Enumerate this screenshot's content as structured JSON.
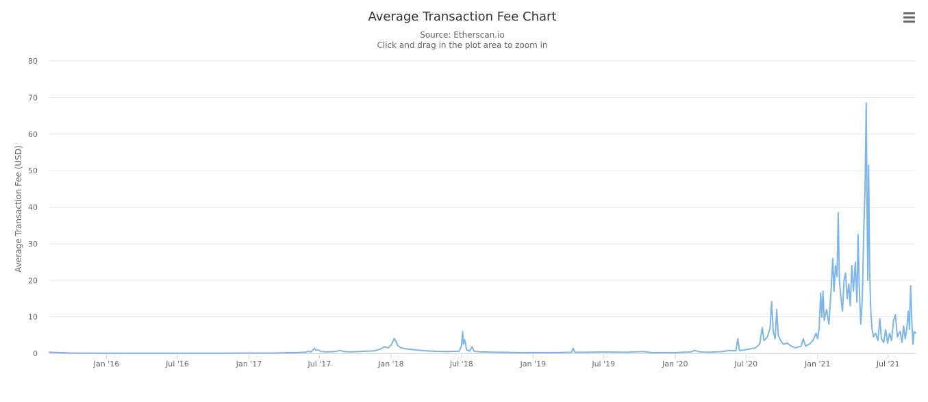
{
  "chart_data": {
    "type": "line",
    "title": "Average Transaction Fee Chart",
    "subtitle_source": "Source: Etherscan.io",
    "subtitle_hint": "Click and drag in the plot area to zoom in",
    "ylabel": "Average Transaction Fee (USD)",
    "xlabel": "",
    "ylim": [
      0,
      80
    ],
    "xlim": [
      "2015-08-07",
      "2021-09-10"
    ],
    "grid": true,
    "legend": "none",
    "y_ticks": [
      "0",
      "10",
      "20",
      "30",
      "40",
      "50",
      "60",
      "70",
      "80"
    ],
    "x_ticks": [
      {
        "date": "2016-01-01",
        "label": "Jan '16"
      },
      {
        "date": "2016-07-01",
        "label": "Jul '16"
      },
      {
        "date": "2017-01-01",
        "label": "Jan '17"
      },
      {
        "date": "2017-07-01",
        "label": "Jul '17"
      },
      {
        "date": "2018-01-01",
        "label": "Jan '18"
      },
      {
        "date": "2018-07-01",
        "label": "Jul '18"
      },
      {
        "date": "2019-01-01",
        "label": "Jan '19"
      },
      {
        "date": "2019-07-01",
        "label": "Jul '19"
      },
      {
        "date": "2020-01-01",
        "label": "Jan '20"
      },
      {
        "date": "2020-07-01",
        "label": "Jul '20"
      },
      {
        "date": "2021-01-01",
        "label": "Jan '21"
      },
      {
        "date": "2021-07-01",
        "label": "Jul '21"
      }
    ],
    "series": [
      {
        "color": "#7cb5ec",
        "points": [
          [
            "2015-08-07",
            0.3
          ],
          [
            "2015-10-01",
            0.1
          ],
          [
            "2016-01-01",
            0.05
          ],
          [
            "2016-04-01",
            0.05
          ],
          [
            "2016-07-01",
            0.05
          ],
          [
            "2016-10-01",
            0.06
          ],
          [
            "2017-01-01",
            0.1
          ],
          [
            "2017-03-01",
            0.1
          ],
          [
            "2017-05-01",
            0.2
          ],
          [
            "2017-05-25",
            0.3
          ],
          [
            "2017-06-03",
            0.6
          ],
          [
            "2017-06-10",
            0.4
          ],
          [
            "2017-06-18",
            1.4
          ],
          [
            "2017-06-22",
            0.8
          ],
          [
            "2017-06-27",
            1.0
          ],
          [
            "2017-07-05",
            0.5
          ],
          [
            "2017-07-20",
            0.4
          ],
          [
            "2017-08-10",
            0.5
          ],
          [
            "2017-08-24",
            0.8
          ],
          [
            "2017-09-01",
            0.5
          ],
          [
            "2017-09-20",
            0.4
          ],
          [
            "2017-10-10",
            0.5
          ],
          [
            "2017-11-01",
            0.6
          ],
          [
            "2017-11-20",
            0.7
          ],
          [
            "2017-12-05",
            1.2
          ],
          [
            "2017-12-15",
            1.8
          ],
          [
            "2017-12-25",
            1.5
          ],
          [
            "2018-01-01",
            2.3
          ],
          [
            "2018-01-05",
            3.0
          ],
          [
            "2018-01-09",
            4.1
          ],
          [
            "2018-01-13",
            3.4
          ],
          [
            "2018-01-18",
            2.2
          ],
          [
            "2018-01-25",
            1.6
          ],
          [
            "2018-02-05",
            1.3
          ],
          [
            "2018-02-20",
            1.1
          ],
          [
            "2018-03-10",
            0.9
          ],
          [
            "2018-04-01",
            0.7
          ],
          [
            "2018-04-20",
            0.6
          ],
          [
            "2018-05-10",
            0.5
          ],
          [
            "2018-06-01",
            0.5
          ],
          [
            "2018-06-25",
            0.6
          ],
          [
            "2018-07-01",
            2.0
          ],
          [
            "2018-07-04",
            6.0
          ],
          [
            "2018-07-06",
            2.5
          ],
          [
            "2018-07-09",
            3.8
          ],
          [
            "2018-07-14",
            1.0
          ],
          [
            "2018-07-22",
            0.6
          ],
          [
            "2018-07-28",
            1.8
          ],
          [
            "2018-08-02",
            0.6
          ],
          [
            "2018-08-20",
            0.4
          ],
          [
            "2018-10-01",
            0.3
          ],
          [
            "2018-12-01",
            0.2
          ],
          [
            "2019-01-01",
            0.2
          ],
          [
            "2019-03-01",
            0.2
          ],
          [
            "2019-04-10",
            0.3
          ],
          [
            "2019-04-14",
            1.4
          ],
          [
            "2019-04-18",
            0.3
          ],
          [
            "2019-05-20",
            0.3
          ],
          [
            "2019-07-01",
            0.4
          ],
          [
            "2019-09-01",
            0.3
          ],
          [
            "2019-10-10",
            0.5
          ],
          [
            "2019-11-01",
            0.2
          ],
          [
            "2020-01-01",
            0.2
          ],
          [
            "2020-02-10",
            0.4
          ],
          [
            "2020-02-20",
            0.8
          ],
          [
            "2020-03-05",
            0.4
          ],
          [
            "2020-04-01",
            0.3
          ],
          [
            "2020-05-01",
            0.5
          ],
          [
            "2020-05-20",
            0.8
          ],
          [
            "2020-06-05",
            0.7
          ],
          [
            "2020-06-10",
            4.0
          ],
          [
            "2020-06-14",
            0.8
          ],
          [
            "2020-06-25",
            0.9
          ],
          [
            "2020-07-10",
            1.2
          ],
          [
            "2020-07-25",
            1.5
          ],
          [
            "2020-08-05",
            2.5
          ],
          [
            "2020-08-12",
            7.1
          ],
          [
            "2020-08-16",
            3.5
          ],
          [
            "2020-08-25",
            4.5
          ],
          [
            "2020-09-01",
            7.0
          ],
          [
            "2020-09-05",
            14.2
          ],
          [
            "2020-09-09",
            6.0
          ],
          [
            "2020-09-14",
            4.0
          ],
          [
            "2020-09-18",
            12.0
          ],
          [
            "2020-09-22",
            5.0
          ],
          [
            "2020-09-28",
            3.5
          ],
          [
            "2020-10-05",
            2.5
          ],
          [
            "2020-10-15",
            2.8
          ],
          [
            "2020-10-25",
            2.0
          ],
          [
            "2020-11-05",
            1.5
          ],
          [
            "2020-11-20",
            2.0
          ],
          [
            "2020-11-25",
            4.0
          ],
          [
            "2020-12-01",
            2.0
          ],
          [
            "2020-12-10",
            2.5
          ],
          [
            "2020-12-20",
            3.5
          ],
          [
            "2020-12-28",
            5.5
          ],
          [
            "2021-01-01",
            4.0
          ],
          [
            "2021-01-05",
            7.0
          ],
          [
            "2021-01-09",
            16.5
          ],
          [
            "2021-01-12",
            10.0
          ],
          [
            "2021-01-15",
            17.0
          ],
          [
            "2021-01-18",
            9.0
          ],
          [
            "2021-01-24",
            12.0
          ],
          [
            "2021-01-30",
            8.0
          ],
          [
            "2021-02-05",
            18.0
          ],
          [
            "2021-02-09",
            26.0
          ],
          [
            "2021-02-12",
            17.0
          ],
          [
            "2021-02-16",
            24.0
          ],
          [
            "2021-02-20",
            21.0
          ],
          [
            "2021-02-23",
            38.5
          ],
          [
            "2021-02-26",
            20.0
          ],
          [
            "2021-03-02",
            15.0
          ],
          [
            "2021-03-06",
            11.5
          ],
          [
            "2021-03-10",
            20.0
          ],
          [
            "2021-03-14",
            22.0
          ],
          [
            "2021-03-18",
            15.0
          ],
          [
            "2021-03-22",
            19.0
          ],
          [
            "2021-03-26",
            13.0
          ],
          [
            "2021-03-30",
            24.0
          ],
          [
            "2021-04-03",
            17.0
          ],
          [
            "2021-04-08",
            25.0
          ],
          [
            "2021-04-12",
            14.0
          ],
          [
            "2021-04-15",
            32.5
          ],
          [
            "2021-04-18",
            18.0
          ],
          [
            "2021-04-22",
            8.0
          ],
          [
            "2021-04-26",
            15.0
          ],
          [
            "2021-04-30",
            35.0
          ],
          [
            "2021-05-03",
            45.0
          ],
          [
            "2021-05-06",
            68.5
          ],
          [
            "2021-05-08",
            40.0
          ],
          [
            "2021-05-10",
            20.0
          ],
          [
            "2021-05-12",
            51.5
          ],
          [
            "2021-05-15",
            22.0
          ],
          [
            "2021-05-18",
            11.0
          ],
          [
            "2021-05-21",
            6.5
          ],
          [
            "2021-05-25",
            4.5
          ],
          [
            "2021-05-30",
            5.5
          ],
          [
            "2021-06-05",
            3.5
          ],
          [
            "2021-06-10",
            9.5
          ],
          [
            "2021-06-14",
            4.0
          ],
          [
            "2021-06-20",
            3.0
          ],
          [
            "2021-06-25",
            6.5
          ],
          [
            "2021-06-30",
            2.8
          ],
          [
            "2021-07-05",
            5.5
          ],
          [
            "2021-07-10",
            3.5
          ],
          [
            "2021-07-15",
            9.0
          ],
          [
            "2021-07-20",
            10.5
          ],
          [
            "2021-07-25",
            4.5
          ],
          [
            "2021-08-01",
            6.0
          ],
          [
            "2021-08-06",
            3.0
          ],
          [
            "2021-08-10",
            7.5
          ],
          [
            "2021-08-14",
            4.0
          ],
          [
            "2021-08-18",
            6.5
          ],
          [
            "2021-08-22",
            11.5
          ],
          [
            "2021-08-25",
            6.5
          ],
          [
            "2021-08-28",
            18.5
          ],
          [
            "2021-08-31",
            9.0
          ],
          [
            "2021-09-03",
            2.5
          ],
          [
            "2021-09-06",
            6.0
          ],
          [
            "2021-09-10",
            5.5
          ]
        ]
      }
    ]
  }
}
